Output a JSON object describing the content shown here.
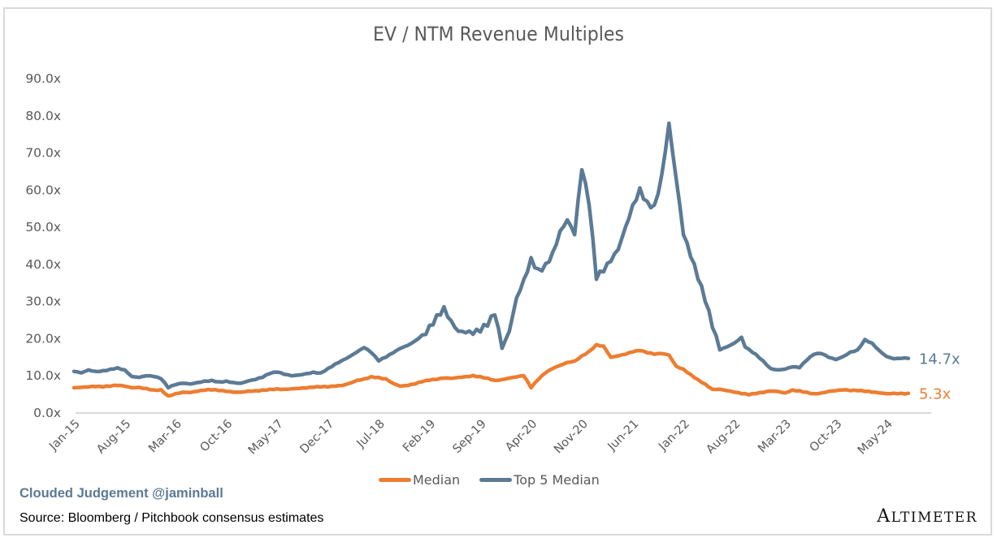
{
  "chart_data": {
    "type": "line",
    "title": "EV / NTM Revenue Multiples",
    "xlabel": "",
    "ylabel": "",
    "ylim": [
      0,
      90
    ],
    "yticks": [
      "0.0x",
      "10.0x",
      "20.0x",
      "30.0x",
      "40.0x",
      "50.0x",
      "60.0x",
      "70.0x",
      "80.0x",
      "90.0x"
    ],
    "xtick_labels": [
      "Jan-15",
      "Aug-15",
      "Mar-16",
      "Oct-16",
      "May-17",
      "Dec-17",
      "Jul-18",
      "Feb-19",
      "Sep-19",
      "Apr-20",
      "Nov-20",
      "Jun-21",
      "Jan-22",
      "Aug-22",
      "Mar-23",
      "Oct-23",
      "May-24"
    ],
    "x_start": "Jan-15",
    "x_interval": "monthly",
    "grid": false,
    "legend_position": "bottom",
    "series": [
      {
        "name": "Median",
        "color": "#ed7d31",
        "end_label": "5.3x",
        "values": [
          6.8,
          6.9,
          7.0,
          7.1,
          7.0,
          7.2,
          7.4,
          7.2,
          6.8,
          6.9,
          6.6,
          6.2,
          6.3,
          4.6,
          5.2,
          5.6,
          5.5,
          5.8,
          6.1,
          6.2,
          6.0,
          5.8,
          5.6,
          5.6,
          5.9,
          6.0,
          6.2,
          6.4,
          6.5,
          6.4,
          6.5,
          6.6,
          6.7,
          6.9,
          7.0,
          7.0,
          7.2,
          7.4,
          8.0,
          8.8,
          9.2,
          9.8,
          9.6,
          9.2,
          8.0,
          7.2,
          7.4,
          7.8,
          8.4,
          8.8,
          9.0,
          9.4,
          9.3,
          9.6,
          9.8,
          10.1,
          9.8,
          9.4,
          8.8,
          9.0,
          9.4,
          9.7,
          10.0,
          6.8,
          9.0,
          10.8,
          12.0,
          12.8,
          13.6,
          14.0,
          15.4,
          16.6,
          18.4,
          18.0,
          15.0,
          15.4,
          15.8,
          16.4,
          16.8,
          16.2,
          15.8,
          16.0,
          15.6,
          12.6,
          11.8,
          10.4,
          9.0,
          7.8,
          6.4,
          6.4,
          6.0,
          5.6,
          5.2,
          4.9,
          5.2,
          5.5,
          5.9,
          5.8,
          5.4,
          6.2,
          6.0,
          5.6,
          5.2,
          5.4,
          5.8,
          6.0,
          6.2,
          6.0,
          6.0,
          5.8,
          5.6,
          5.4,
          5.2,
          5.3,
          5.3,
          5.3
        ]
      },
      {
        "name": "Top 5 Median",
        "color": "#5b7a95",
        "end_label": "14.7x",
        "values": [
          11.2,
          10.8,
          11.6,
          11.2,
          11.4,
          11.8,
          12.2,
          11.6,
          9.8,
          9.6,
          10.0,
          9.8,
          9.2,
          6.8,
          7.6,
          8.0,
          7.8,
          8.2,
          8.6,
          8.8,
          8.4,
          8.6,
          8.2,
          8.0,
          8.6,
          9.0,
          9.6,
          10.6,
          11.0,
          10.4,
          10.0,
          10.2,
          10.6,
          11.0,
          10.8,
          12.0,
          13.2,
          14.2,
          15.2,
          16.4,
          17.6,
          16.2,
          14.0,
          15.0,
          16.2,
          17.4,
          18.2,
          19.4,
          21.0,
          23.6,
          26.4,
          28.6,
          24.8,
          22.0,
          21.6,
          21.2,
          21.8,
          23.4,
          26.4,
          17.4,
          22.0,
          31.0,
          36.0,
          41.8,
          38.8,
          40.2,
          43.4,
          49.0,
          52.0,
          48.0,
          65.5,
          56.0,
          36.0,
          38.0,
          40.8,
          44.0,
          50.0,
          56.0,
          60.6,
          57.0,
          56.0,
          64.0,
          78.0,
          63.0,
          48.0,
          42.0,
          36.0,
          30.0,
          23.0,
          17.0,
          17.8,
          18.8,
          20.4,
          17.2,
          15.8,
          14.0,
          12.0,
          11.6,
          11.8,
          12.4,
          12.2,
          14.2,
          15.8,
          16.0,
          15.0,
          14.4,
          15.2,
          16.4,
          17.0,
          19.8,
          18.8,
          16.8,
          15.2,
          14.6,
          14.7,
          14.7
        ]
      }
    ]
  },
  "legend": {
    "items": [
      {
        "label": "Median",
        "color": "#ed7d31"
      },
      {
        "label": "Top 5 Median",
        "color": "#5b7a95"
      }
    ]
  },
  "footer": {
    "brand": "Clouded Judgement @jaminball",
    "source": "Source: Bloomberg / Pitchbook consensus estimates",
    "logo": "ALTIMETER"
  }
}
